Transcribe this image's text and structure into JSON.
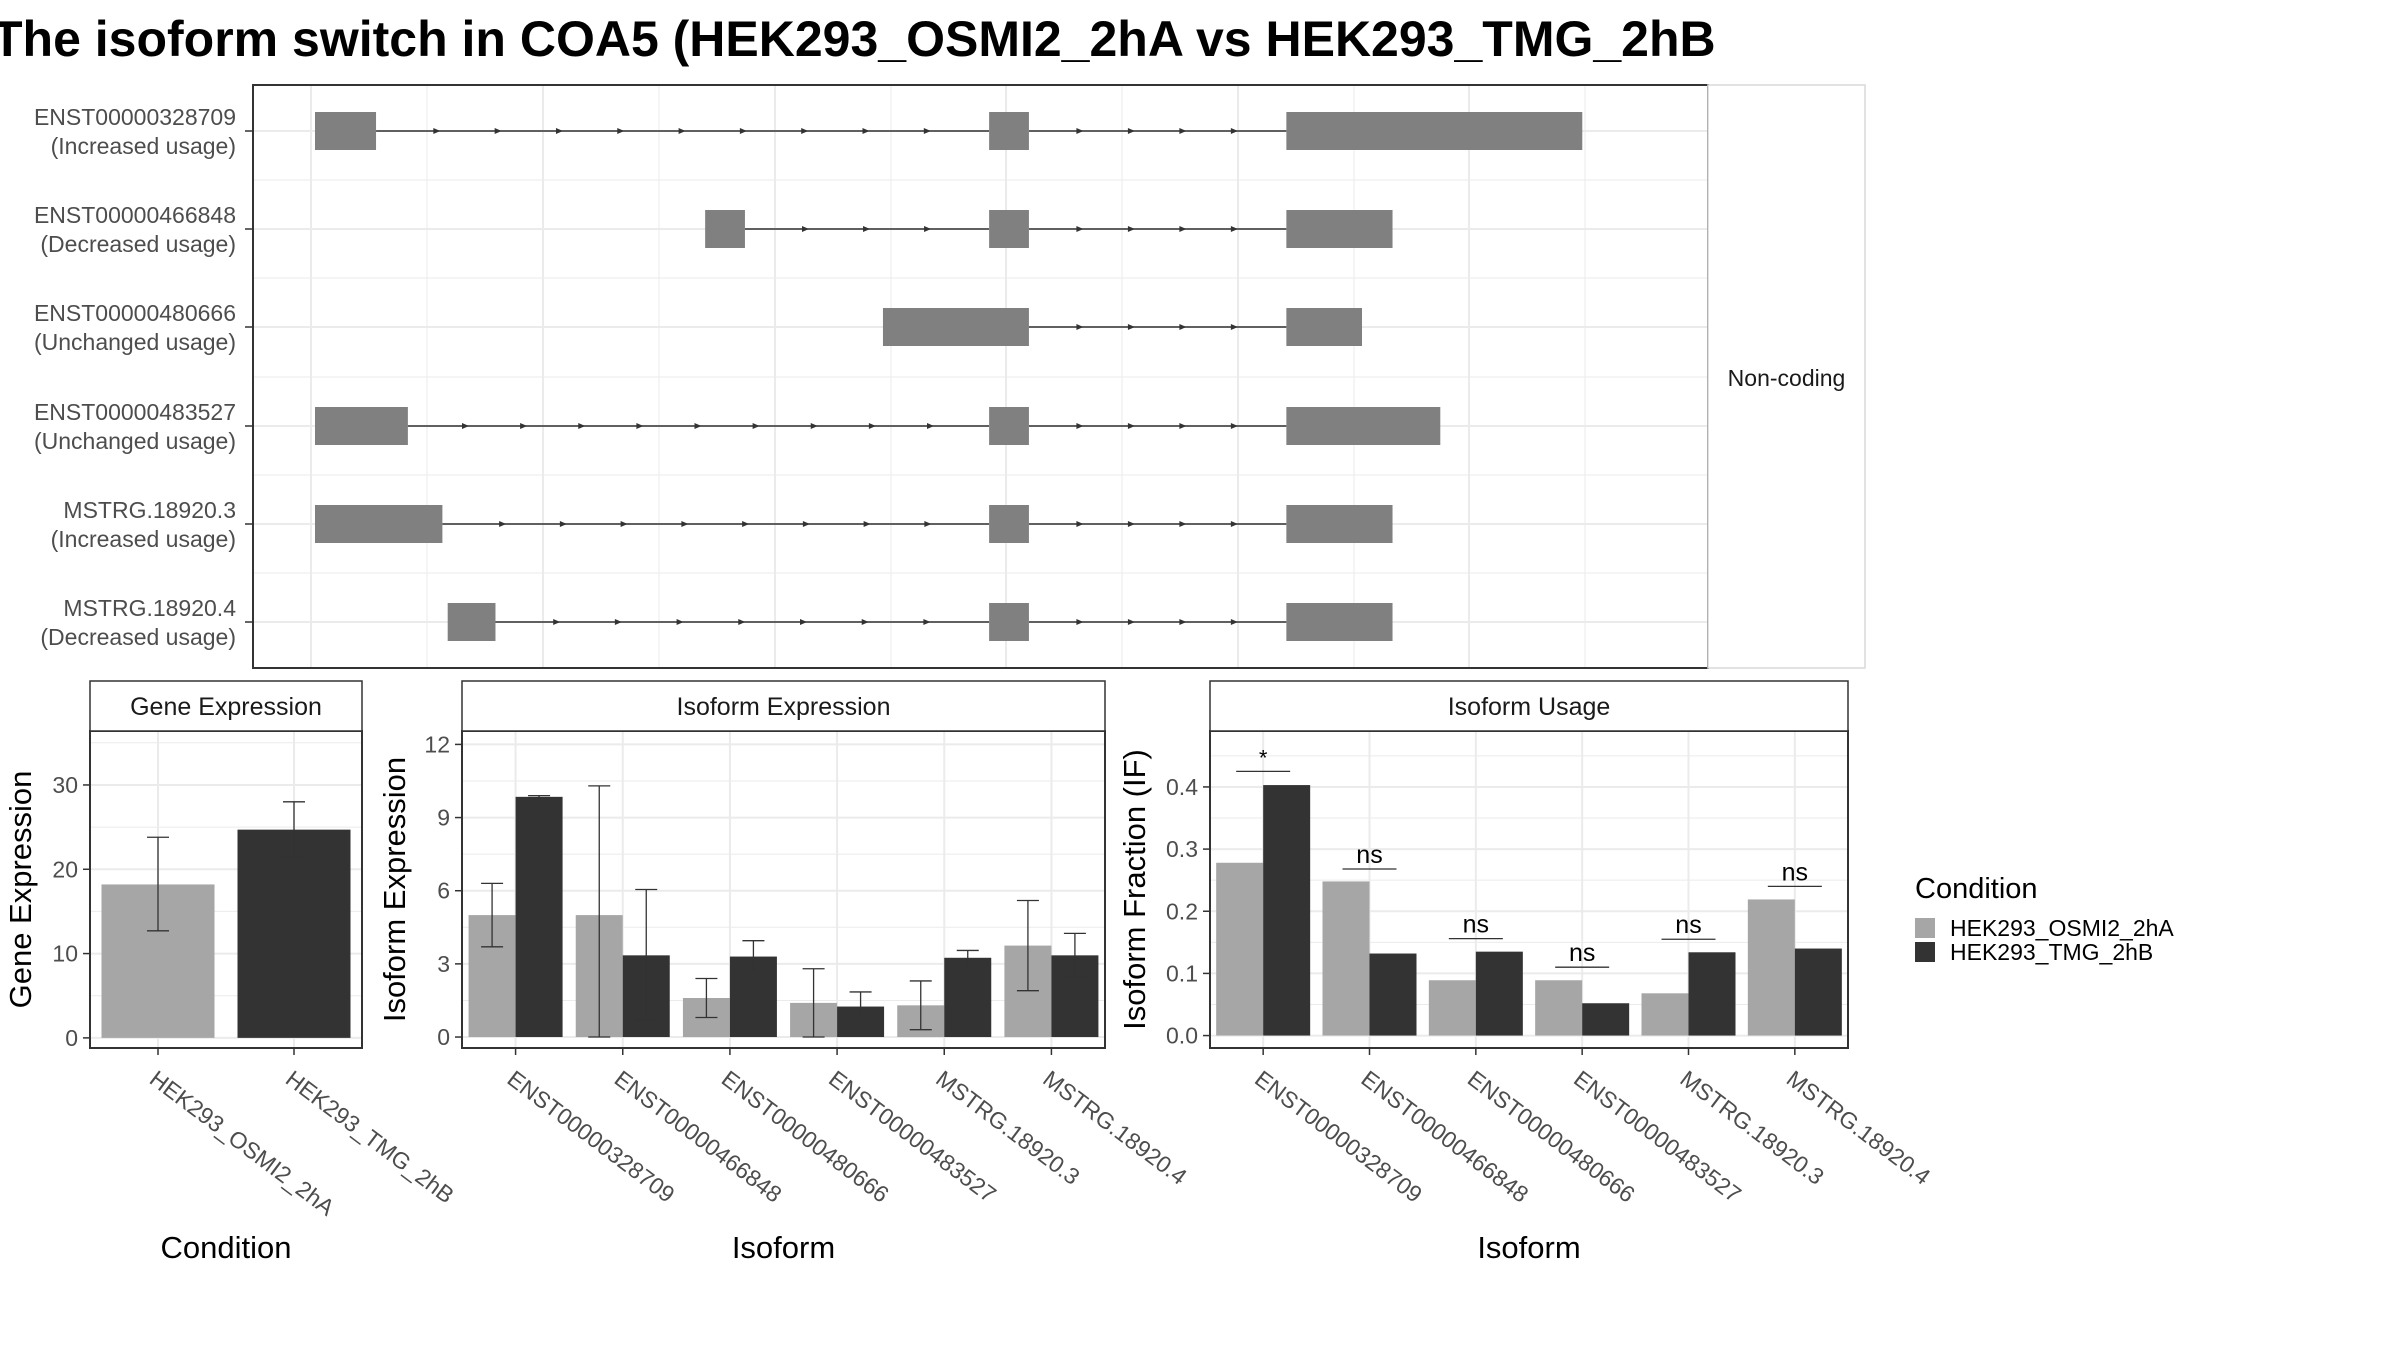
{
  "title": "The isoform switch in COA5 (HEK293_OSMI2_2hA vs HEK293_TMG_2hB",
  "colors": {
    "cond_a": "#a6a6a6",
    "cond_b": "#333333",
    "exon": "#808080",
    "grid": "#ebebeb",
    "panel_border": "#333333",
    "strip_border": "#d9d9d9",
    "axis_text": "#4d4d4d"
  },
  "legend": {
    "title": "Condition",
    "entries": [
      "HEK293_OSMI2_2hA",
      "HEK293_TMG_2hB"
    ]
  },
  "chart_data": [
    {
      "id": "transcript_structure",
      "type": "gene-structure",
      "facet_label": "Non-coding",
      "x_range": [
        0,
        100
      ],
      "grid": true,
      "transcripts": [
        {
          "id": "ENST00000328709",
          "usage": "(Increased usage)",
          "exons": [
            [
              0,
              4.6
            ],
            [
              50.8,
              53.8
            ],
            [
              73.2,
              95.5
            ]
          ]
        },
        {
          "id": "ENST00000466848",
          "usage": "(Decreased usage)",
          "exons": [
            [
              29.4,
              32.4
            ],
            [
              50.8,
              53.8
            ],
            [
              73.2,
              81.2
            ]
          ]
        },
        {
          "id": "ENST00000480666",
          "usage": "(Unchanged usage)",
          "exons": [
            [
              42.8,
              53.8
            ],
            [
              73.2,
              78.9
            ]
          ]
        },
        {
          "id": "ENST00000483527",
          "usage": "(Unchanged usage)",
          "exons": [
            [
              0,
              7.0
            ],
            [
              50.8,
              53.8
            ],
            [
              73.2,
              84.8
            ]
          ]
        },
        {
          "id": "MSTRG.18920.3",
          "usage": "(Increased usage)",
          "exons": [
            [
              0,
              9.6
            ],
            [
              50.8,
              53.8
            ],
            [
              73.2,
              81.2
            ]
          ]
        },
        {
          "id": "MSTRG.18920.4",
          "usage": "(Decreased usage)",
          "exons": [
            [
              10.0,
              13.6
            ],
            [
              50.8,
              53.8
            ],
            [
              73.2,
              81.2
            ]
          ]
        }
      ]
    },
    {
      "id": "gene_expression",
      "type": "bar",
      "strip": "Gene Expression",
      "xlabel": "Condition",
      "ylabel": "Gene Expression",
      "categories": [
        "HEK293_OSMI2_2hA",
        "HEK293_TMG_2hB"
      ],
      "values": [
        18.2,
        24.7
      ],
      "error": [
        [
          12.7,
          23.8
        ],
        [
          21.4,
          28.0
        ]
      ],
      "ylim": [
        -1.2,
        36.4
      ],
      "yticks": [
        0,
        10,
        20,
        30
      ],
      "grid": true
    },
    {
      "id": "isoform_expression",
      "type": "bar",
      "strip": "Isoform Expression",
      "xlabel": "Isoform",
      "ylabel": "Isoform Expression",
      "categories": [
        "ENST00000328709",
        "ENST00000466848",
        "ENST00000480666",
        "ENST00000483527",
        "MSTRG.18920.3",
        "MSTRG.18920.4"
      ],
      "series": [
        {
          "name": "HEK293_OSMI2_2hA",
          "values": [
            5.0,
            5.0,
            1.6,
            1.4,
            1.3,
            3.75
          ],
          "error": [
            [
              3.7,
              6.3
            ],
            [
              0.0,
              10.3
            ],
            [
              0.8,
              2.4
            ],
            [
              0.0,
              2.8
            ],
            [
              0.3,
              2.3
            ],
            [
              1.9,
              5.6
            ]
          ]
        },
        {
          "name": "HEK293_TMG_2hB",
          "values": [
            9.85,
            3.35,
            3.3,
            1.25,
            3.25,
            3.35
          ],
          "error": [
            [
              9.8,
              9.9
            ],
            [
              0.7,
              6.05
            ],
            [
              2.65,
              3.95
            ],
            [
              0.65,
              1.85
            ],
            [
              2.9,
              3.55
            ],
            [
              2.45,
              4.25
            ]
          ]
        }
      ],
      "ylim": [
        -0.45,
        12.55
      ],
      "yticks": [
        0,
        3,
        6,
        9,
        12
      ],
      "grid": true
    },
    {
      "id": "isoform_usage",
      "type": "bar",
      "strip": "Isoform Usage",
      "xlabel": "Isoform",
      "ylabel": "Isoform Fraction (IF)",
      "categories": [
        "ENST00000328709",
        "ENST00000466848",
        "ENST00000480666",
        "ENST00000483527",
        "MSTRG.18920.3",
        "MSTRG.18920.4"
      ],
      "series": [
        {
          "name": "HEK293_OSMI2_2hA",
          "values": [
            0.278,
            0.248,
            0.089,
            0.089,
            0.068,
            0.219
          ]
        },
        {
          "name": "HEK293_TMG_2hB",
          "values": [
            0.403,
            0.132,
            0.135,
            0.052,
            0.134,
            0.14
          ]
        }
      ],
      "significance": [
        {
          "label": "*",
          "y": 0.425
        },
        {
          "label": "ns",
          "y": 0.268
        },
        {
          "label": "ns",
          "y": 0.156
        },
        {
          "label": "ns",
          "y": 0.11
        },
        {
          "label": "ns",
          "y": 0.155
        },
        {
          "label": "ns",
          "y": 0.24
        }
      ],
      "ylim": [
        -0.02,
        0.49
      ],
      "yticks": [
        0.0,
        0.1,
        0.2,
        0.3,
        0.4
      ],
      "ytick_labels": [
        "0.0",
        "0.1",
        "0.2",
        "0.3",
        "0.4"
      ],
      "grid": true
    }
  ]
}
